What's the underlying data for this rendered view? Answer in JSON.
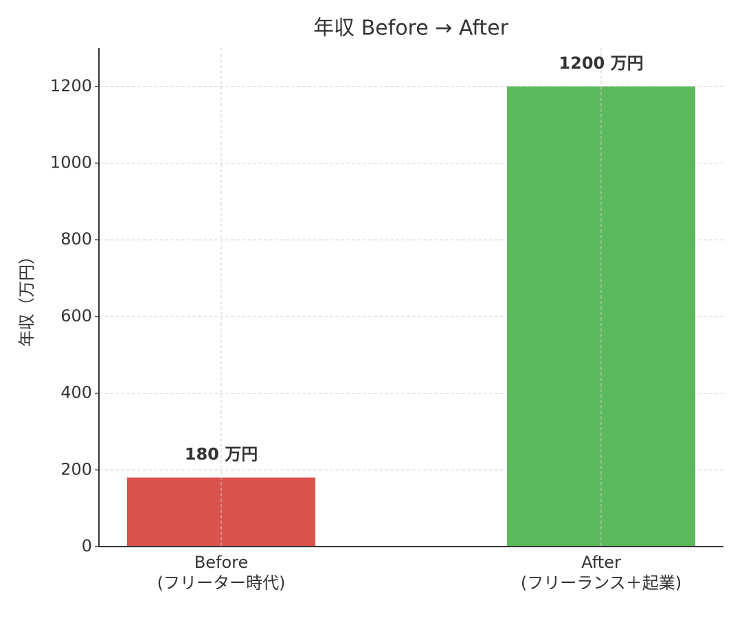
{
  "chart_data": {
    "type": "bar",
    "title": "年収 Before → After",
    "y_label": "年収（万円）",
    "categories": [
      "Before\n(フリーター時代)",
      "After\n(フリーランス＋起業)"
    ],
    "values": [
      180,
      1200
    ],
    "value_labels": [
      "180 万円",
      "1200 万円"
    ],
    "colors": [
      "#d9534f",
      "#5cb85c"
    ],
    "ylim": [
      0,
      1300
    ],
    "yticks": [
      0,
      200,
      400,
      600,
      800,
      1000,
      1200
    ],
    "grid": true
  }
}
